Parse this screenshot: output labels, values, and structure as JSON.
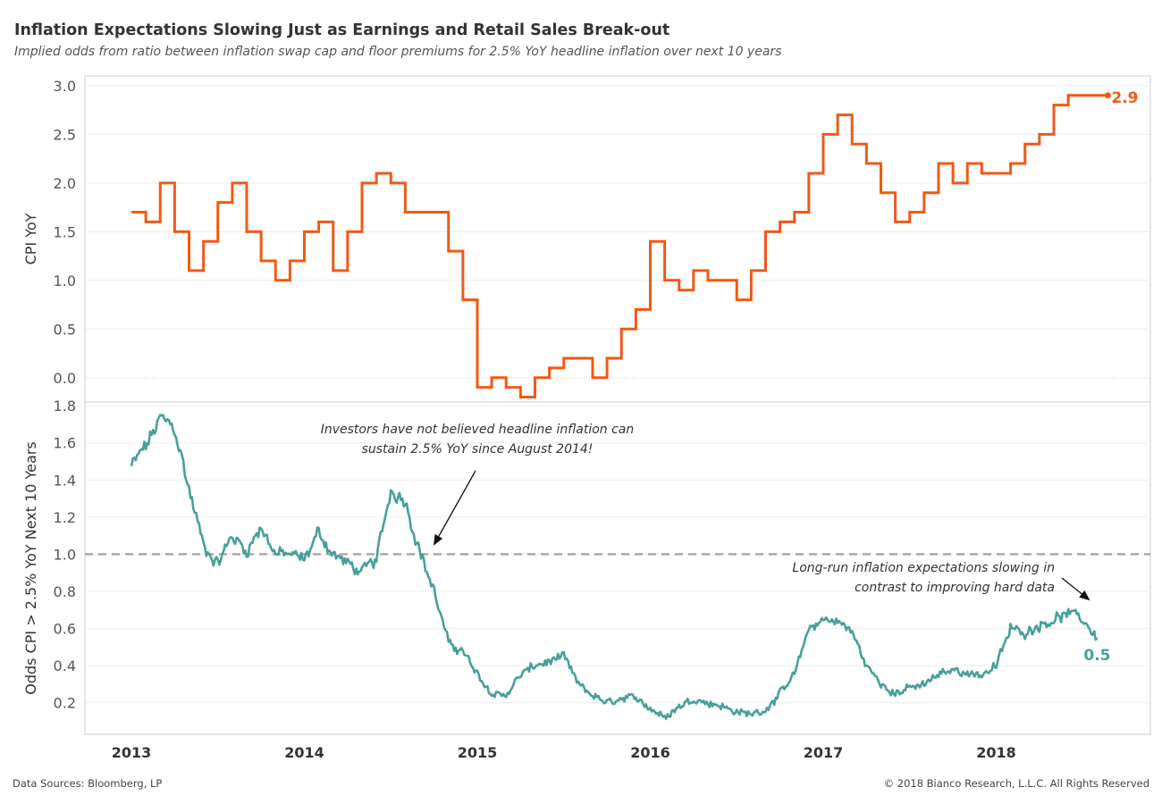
{
  "title": "Inflation Expectations Slowing Just as Earnings and Retail Sales Break-out",
  "subtitle": "Implied odds from ratio between inflation swap cap and floor premiums for 2.5% YoY headline inflation over next 10 years",
  "footer": {
    "sources": "Data Sources: Bloomberg, LP",
    "copyright": "© 2018 Bianco Research, L.L.C. All Rights Reserved"
  },
  "colors": {
    "cpi": "#f05a14",
    "odds": "#4a9f9a",
    "reference": "#aaaaaa",
    "grid": "#ececec",
    "frame": "#cccccc"
  },
  "chart_data": [
    {
      "type": "line",
      "ylabel": "CPI YoY",
      "ylim": [
        -0.25,
        3.1
      ],
      "yticks": [
        "0.0",
        "0.5",
        "1.0",
        "1.5",
        "2.0",
        "2.5",
        "3.0"
      ],
      "end_label": "2.9",
      "series": [
        {
          "step": true,
          "x": [
            "2013-01",
            "2013-02",
            "2013-03",
            "2013-04",
            "2013-05",
            "2013-06",
            "2013-07",
            "2013-08",
            "2013-09",
            "2013-10",
            "2013-11",
            "2013-12",
            "2014-01",
            "2014-02",
            "2014-03",
            "2014-04",
            "2014-05",
            "2014-06",
            "2014-07",
            "2014-08",
            "2014-09",
            "2014-10",
            "2014-11",
            "2014-12",
            "2015-01",
            "2015-02",
            "2015-03",
            "2015-04",
            "2015-05",
            "2015-06",
            "2015-07",
            "2015-08",
            "2015-09",
            "2015-10",
            "2015-11",
            "2015-12",
            "2016-01",
            "2016-02",
            "2016-03",
            "2016-04",
            "2016-05",
            "2016-06",
            "2016-07",
            "2016-08",
            "2016-09",
            "2016-10",
            "2016-11",
            "2016-12",
            "2017-01",
            "2017-02",
            "2017-03",
            "2017-04",
            "2017-05",
            "2017-06",
            "2017-07",
            "2017-08",
            "2017-09",
            "2017-10",
            "2017-11",
            "2017-12",
            "2018-01",
            "2018-02",
            "2018-03",
            "2018-04",
            "2018-05",
            "2018-06",
            "2018-07",
            "2018-08"
          ],
          "y": [
            1.7,
            1.6,
            2.0,
            1.5,
            1.1,
            1.4,
            1.8,
            2.0,
            1.5,
            1.2,
            1.0,
            1.2,
            1.5,
            1.6,
            1.1,
            1.5,
            2.0,
            2.1,
            2.0,
            1.7,
            1.7,
            1.7,
            1.3,
            0.8,
            -0.1,
            0.0,
            -0.1,
            -0.2,
            0.0,
            0.1,
            0.2,
            0.2,
            0.0,
            0.2,
            0.5,
            0.7,
            1.4,
            1.0,
            0.9,
            1.1,
            1.0,
            1.0,
            0.8,
            1.1,
            1.5,
            1.6,
            1.7,
            2.1,
            2.5,
            2.7,
            2.4,
            2.2,
            1.9,
            1.6,
            1.7,
            1.9,
            2.2,
            2.0,
            2.2,
            2.1,
            2.1,
            2.2,
            2.4,
            2.5,
            2.8,
            2.9,
            2.9,
            2.9
          ]
        }
      ]
    },
    {
      "type": "line",
      "ylabel": "Odds CPI > 2.5% YoY Next 10 Years",
      "ylim": [
        0.03,
        1.82
      ],
      "yticks": [
        "0.2",
        "0.4",
        "0.6",
        "0.8",
        "1.0",
        "1.2",
        "1.4",
        "1.6",
        "1.8"
      ],
      "reference_line": 1.0,
      "end_label": "0.5",
      "xticks": [
        "2013",
        "2014",
        "2015",
        "2016",
        "2017",
        "2018"
      ],
      "annotations": [
        {
          "lines": [
            "Investors have not believed headline inflation can",
            "sustain 2.5% YoY since August 2014!"
          ]
        },
        {
          "lines": [
            "Long-run inflation expectations slowing in",
            "contrast to improving hard data"
          ]
        }
      ],
      "series": [
        {
          "x": [
            "2013-01",
            "2013-02",
            "2013-03",
            "2013-04",
            "2013-05",
            "2013-06",
            "2013-07",
            "2013-08",
            "2013-09",
            "2013-10",
            "2013-11",
            "2013-12",
            "2014-01",
            "2014-02",
            "2014-03",
            "2014-04",
            "2014-05",
            "2014-06",
            "2014-07",
            "2014-08",
            "2014-09",
            "2014-10",
            "2014-11",
            "2014-12",
            "2015-01",
            "2015-02",
            "2015-03",
            "2015-04",
            "2015-05",
            "2015-06",
            "2015-07",
            "2015-08",
            "2015-09",
            "2015-10",
            "2015-11",
            "2015-12",
            "2016-01",
            "2016-02",
            "2016-03",
            "2016-04",
            "2016-05",
            "2016-06",
            "2016-07",
            "2016-08",
            "2016-09",
            "2016-10",
            "2016-11",
            "2016-12",
            "2017-01",
            "2017-02",
            "2017-03",
            "2017-04",
            "2017-05",
            "2017-06",
            "2017-07",
            "2017-08",
            "2017-09",
            "2017-10",
            "2017-11",
            "2017-12",
            "2018-01",
            "2018-02",
            "2018-03",
            "2018-04",
            "2018-05",
            "2018-06",
            "2018-07",
            "2018-08"
          ],
          "y": [
            1.47,
            1.58,
            1.72,
            1.68,
            1.35,
            1.05,
            0.95,
            1.1,
            1.02,
            1.15,
            1.0,
            1.0,
            0.97,
            1.12,
            1.0,
            0.95,
            0.9,
            0.97,
            1.35,
            1.3,
            1.02,
            0.8,
            0.52,
            0.48,
            0.35,
            0.25,
            0.24,
            0.35,
            0.4,
            0.42,
            0.45,
            0.3,
            0.24,
            0.2,
            0.22,
            0.23,
            0.17,
            0.12,
            0.18,
            0.22,
            0.2,
            0.18,
            0.15,
            0.14,
            0.16,
            0.25,
            0.35,
            0.6,
            0.65,
            0.64,
            0.58,
            0.4,
            0.3,
            0.25,
            0.28,
            0.3,
            0.35,
            0.38,
            0.36,
            0.35,
            0.4,
            0.6,
            0.58,
            0.62,
            0.65,
            0.68,
            0.65,
            0.55
          ]
        }
      ]
    }
  ]
}
